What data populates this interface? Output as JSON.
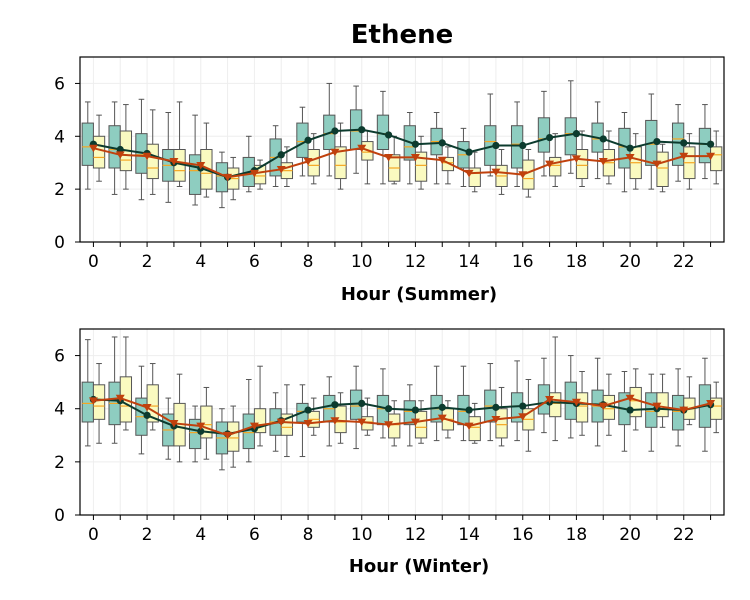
{
  "title": "Ethene",
  "colors": {
    "box_a_fill": "#8ecdc0",
    "box_b_fill": "#fafac0",
    "box_edge": "#555555",
    "median_a": "#f5a623",
    "median_b": "#f5a623",
    "line_a": "#0c3b2e",
    "line_b": "#c0410d",
    "grid": "#eeeeee"
  },
  "chart_data": [
    {
      "type": "box",
      "xlabel": "Hour (Summer)",
      "xlim": [
        -0.5,
        23.5
      ],
      "ylim": [
        0,
        7
      ],
      "xticks": [
        0,
        2,
        4,
        6,
        8,
        10,
        12,
        14,
        16,
        18,
        20,
        22
      ],
      "yticks": [
        0,
        2,
        4,
        6
      ],
      "grid": true,
      "series": [
        {
          "marker": "circle",
          "mean": [
            3.7,
            3.5,
            3.35,
            3.0,
            2.8,
            2.45,
            2.7,
            3.3,
            3.85,
            4.2,
            4.25,
            4.05,
            3.7,
            3.75,
            3.4,
            3.65,
            3.65,
            3.95,
            4.1,
            3.9,
            3.55,
            3.8,
            3.75,
            3.7
          ],
          "box": [
            [
              2.0,
              2.9,
              3.6,
              4.5,
              5.3
            ],
            [
              1.8,
              2.8,
              3.5,
              4.4,
              5.3
            ],
            [
              1.6,
              2.6,
              3.3,
              4.1,
              5.4
            ],
            [
              1.5,
              2.3,
              2.9,
              3.5,
              4.9
            ],
            [
              1.4,
              1.8,
              2.7,
              3.3,
              4.8
            ],
            [
              1.3,
              1.9,
              2.5,
              3.0,
              3.4
            ],
            [
              1.9,
              2.1,
              2.6,
              3.2,
              4.0
            ],
            [
              2.1,
              2.5,
              3.2,
              3.9,
              4.4
            ],
            [
              2.5,
              3.2,
              3.8,
              4.5,
              5.1
            ],
            [
              2.5,
              3.5,
              4.1,
              4.8,
              6.0
            ],
            [
              2.6,
              3.5,
              4.2,
              5.0,
              5.9
            ],
            [
              2.2,
              3.5,
              4.1,
              4.8,
              5.7
            ],
            [
              2.2,
              3.1,
              3.6,
              4.4,
              4.9
            ],
            [
              2.2,
              3.3,
              3.8,
              4.3,
              4.9
            ],
            [
              2.1,
              2.8,
              3.3,
              3.8,
              4.3
            ],
            [
              2.5,
              2.9,
              3.8,
              4.4,
              5.6
            ],
            [
              2.1,
              2.8,
              3.7,
              4.4,
              5.3
            ],
            [
              2.5,
              3.4,
              3.9,
              4.7,
              5.7
            ],
            [
              2.6,
              3.3,
              4.1,
              4.7,
              6.1
            ],
            [
              2.4,
              3.4,
              3.9,
              4.5,
              5.3
            ],
            [
              1.9,
              2.8,
              3.6,
              4.3,
              4.9
            ],
            [
              2.0,
              2.9,
              3.7,
              4.6,
              5.6
            ],
            [
              2.3,
              2.9,
              3.9,
              4.5,
              5.2
            ],
            [
              2.4,
              3.0,
              3.7,
              4.3,
              5.2
            ]
          ]
        },
        {
          "marker": "triangle",
          "mean": [
            3.55,
            3.3,
            3.25,
            3.05,
            2.9,
            2.45,
            2.6,
            2.75,
            3.05,
            3.4,
            3.55,
            3.2,
            3.2,
            3.1,
            2.6,
            2.65,
            2.55,
            2.95,
            3.15,
            3.05,
            3.2,
            2.95,
            3.25,
            3.25
          ],
          "box": [
            [
              2.3,
              2.8,
              3.2,
              4.0,
              4.8
            ],
            [
              2.0,
              2.7,
              3.1,
              4.2,
              5.2
            ],
            [
              1.8,
              2.4,
              2.8,
              3.7,
              5.0
            ],
            [
              2.1,
              2.3,
              2.7,
              3.5,
              5.3
            ],
            [
              1.7,
              2.0,
              2.6,
              3.5,
              4.5
            ],
            [
              1.6,
              2.0,
              2.4,
              2.8,
              3.2
            ],
            [
              2.0,
              2.2,
              2.5,
              2.9,
              3.1
            ],
            [
              2.1,
              2.4,
              2.7,
              3.0,
              3.6
            ],
            [
              2.2,
              2.5,
              2.9,
              3.5,
              4.1
            ],
            [
              2.0,
              2.4,
              2.9,
              3.6,
              4.5
            ],
            [
              2.2,
              3.1,
              3.4,
              3.8,
              4.2
            ],
            [
              2.2,
              2.3,
              2.8,
              3.3,
              4.0
            ],
            [
              2.0,
              2.3,
              2.9,
              3.4,
              4.0
            ],
            [
              2.2,
              2.7,
              3.0,
              3.2,
              3.6
            ],
            [
              1.9,
              2.1,
              2.6,
              2.8,
              3.4
            ],
            [
              1.8,
              2.1,
              2.5,
              2.9,
              3.5
            ],
            [
              1.7,
              2.0,
              2.4,
              3.1,
              3.5
            ],
            [
              2.1,
              2.5,
              2.9,
              3.2,
              4.1
            ],
            [
              2.1,
              2.4,
              2.9,
              3.5,
              4.2
            ],
            [
              2.2,
              2.5,
              3.0,
              3.5,
              4.2
            ],
            [
              2.0,
              2.4,
              3.0,
              3.6,
              4.1
            ],
            [
              1.9,
              2.1,
              2.8,
              3.4,
              3.7
            ],
            [
              2.0,
              2.4,
              3.0,
              3.6,
              4.1
            ],
            [
              2.2,
              2.7,
              3.3,
              3.6,
              4.2
            ]
          ]
        }
      ]
    },
    {
      "type": "box",
      "xlabel": "Hour (Winter)",
      "xlim": [
        -0.5,
        23.5
      ],
      "ylim": [
        0,
        7
      ],
      "xticks": [
        0,
        2,
        4,
        6,
        8,
        10,
        12,
        14,
        16,
        18,
        20,
        22
      ],
      "yticks": [
        0,
        2,
        4,
        6
      ],
      "grid": true,
      "series": [
        {
          "marker": "circle",
          "mean": [
            4.35,
            4.3,
            3.75,
            3.35,
            3.15,
            3.05,
            3.25,
            3.55,
            3.95,
            4.15,
            4.2,
            4.0,
            3.95,
            4.05,
            3.95,
            4.05,
            4.1,
            4.25,
            4.2,
            4.15,
            3.95,
            4.0,
            3.95,
            4.15
          ],
          "box": [
            [
              2.6,
              3.5,
              4.2,
              5.0,
              6.6
            ],
            [
              2.7,
              3.4,
              4.2,
              5.0,
              6.7
            ],
            [
              2.3,
              3.0,
              3.7,
              4.4,
              5.6
            ],
            [
              2.1,
              2.6,
              3.2,
              3.8,
              4.4
            ],
            [
              2.0,
              2.5,
              3.1,
              3.6,
              4.1
            ],
            [
              1.7,
              2.3,
              2.9,
              3.5,
              4.0
            ],
            [
              2.0,
              2.5,
              3.1,
              3.8,
              5.1
            ],
            [
              2.4,
              3.0,
              3.5,
              4.0,
              4.6
            ],
            [
              2.2,
              3.5,
              3.9,
              4.2,
              4.9
            ],
            [
              2.6,
              3.5,
              4.0,
              4.5,
              5.2
            ],
            [
              2.5,
              3.6,
              4.1,
              4.7,
              5.6
            ],
            [
              2.9,
              3.4,
              4.0,
              4.5,
              5.5
            ],
            [
              2.6,
              3.4,
              3.9,
              4.3,
              4.9
            ],
            [
              2.8,
              3.5,
              4.0,
              4.5,
              5.6
            ],
            [
              2.8,
              3.4,
              3.9,
              4.5,
              5.6
            ],
            [
              2.8,
              3.5,
              4.1,
              4.7,
              5.7
            ],
            [
              2.8,
              3.5,
              4.1,
              4.6,
              5.8
            ],
            [
              3.1,
              3.8,
              4.2,
              4.9,
              5.9
            ],
            [
              2.9,
              3.6,
              4.2,
              5.0,
              6.0
            ],
            [
              2.6,
              3.5,
              4.1,
              4.7,
              5.9
            ],
            [
              2.4,
              3.4,
              4.0,
              4.6,
              5.4
            ],
            [
              2.4,
              3.3,
              3.9,
              4.6,
              5.3
            ],
            [
              2.6,
              3.2,
              3.9,
              4.5,
              5.5
            ],
            [
              2.4,
              3.3,
              4.1,
              4.9,
              5.9
            ]
          ]
        },
        {
          "marker": "triangle",
          "mean": [
            4.3,
            4.4,
            4.05,
            3.45,
            3.35,
            3.0,
            3.35,
            3.5,
            3.45,
            3.55,
            3.5,
            3.4,
            3.5,
            3.65,
            3.35,
            3.6,
            3.7,
            4.35,
            4.25,
            4.1,
            4.4,
            4.1,
            3.95,
            4.2
          ],
          "box": [
            [
              2.7,
              3.6,
              4.1,
              4.9,
              5.7
            ],
            [
              3.2,
              3.5,
              4.1,
              5.2,
              6.7
            ],
            [
              3.2,
              3.5,
              4.1,
              4.9,
              5.7
            ],
            [
              2.0,
              2.6,
              3.3,
              4.2,
              5.3
            ],
            [
              2.1,
              2.9,
              3.4,
              4.1,
              4.8
            ],
            [
              1.8,
              2.4,
              2.9,
              3.5,
              4.1
            ],
            [
              2.6,
              3.1,
              3.4,
              4.0,
              5.6
            ],
            [
              2.2,
              3.0,
              3.3,
              3.8,
              4.9
            ],
            [
              3.0,
              3.3,
              3.6,
              3.9,
              4.4
            ],
            [
              2.7,
              3.1,
              3.5,
              4.1,
              4.6
            ],
            [
              3.0,
              3.2,
              3.5,
              3.7,
              4.4
            ],
            [
              2.6,
              2.9,
              3.4,
              3.8,
              4.3
            ],
            [
              2.7,
              2.9,
              3.3,
              3.9,
              4.3
            ],
            [
              2.9,
              3.2,
              3.6,
              4.0,
              4.3
            ],
            [
              2.7,
              2.8,
              3.3,
              3.7,
              4.2
            ],
            [
              2.6,
              2.9,
              3.4,
              4.0,
              4.8
            ],
            [
              2.4,
              3.2,
              3.6,
              4.0,
              5.1
            ],
            [
              2.8,
              3.7,
              4.2,
              4.6,
              6.7
            ],
            [
              3.0,
              3.5,
              4.1,
              4.6,
              5.4
            ],
            [
              3.0,
              3.6,
              4.0,
              4.5,
              5.3
            ],
            [
              3.2,
              3.7,
              4.3,
              4.8,
              5.5
            ],
            [
              3.3,
              3.7,
              4.0,
              4.6,
              5.3
            ],
            [
              3.4,
              3.6,
              4.0,
              4.4,
              5.2
            ],
            [
              3.1,
              3.6,
              4.1,
              4.4,
              5.0
            ]
          ]
        }
      ]
    }
  ]
}
